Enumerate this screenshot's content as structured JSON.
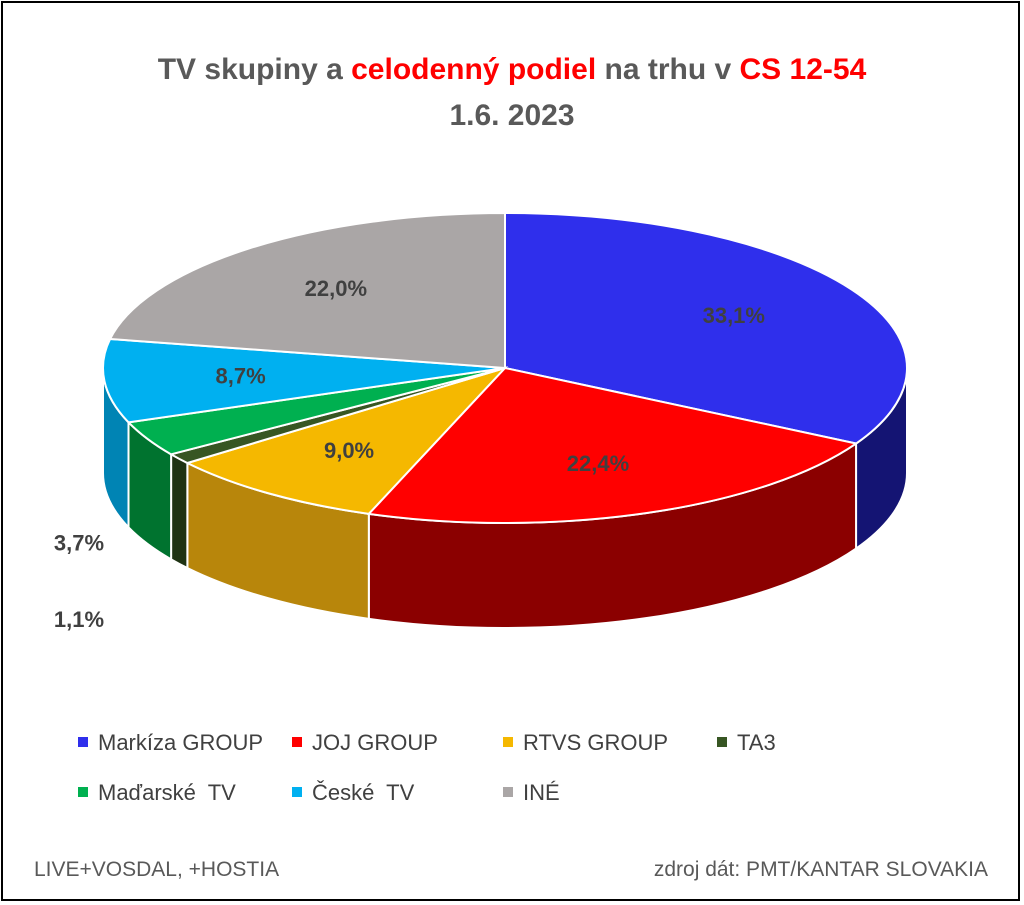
{
  "title": {
    "part1": "TV skupiny a ",
    "part2": "celodenný podiel",
    "part3": " na trhu v ",
    "part4": "CS 12-54",
    "date": "1.6. 2023"
  },
  "footer": {
    "left": "LIVE+VOSDAL,  +HOSTIA",
    "right": "zdroj dát: PMT/KANTAR SLOVAKIA"
  },
  "chart_data": {
    "type": "pie",
    "style": "3d",
    "legend_position": "bottom",
    "categories": [
      "Markíza GROUP",
      "JOJ GROUP",
      "RTVS GROUP",
      "TA3",
      "Maďarské  TV",
      "České  TV",
      "INÉ"
    ],
    "values": [
      33.1,
      22.4,
      9.0,
      1.1,
      3.7,
      8.7,
      22.0
    ],
    "labels": [
      "33,1%",
      "22,4%",
      "9,0%",
      "1,1%",
      "3,7%",
      "8,7%",
      "22,0%"
    ],
    "colors": [
      "#2f2fec",
      "#ff0000",
      "#f5b800",
      "#375623",
      "#00b050",
      "#00b0f0",
      "#aaa6a6"
    ],
    "side_colors": [
      "#141473",
      "#8b0000",
      "#b8860b",
      "#1e3313",
      "#00732f",
      "#0084b4",
      "#7d7a7a"
    ]
  }
}
